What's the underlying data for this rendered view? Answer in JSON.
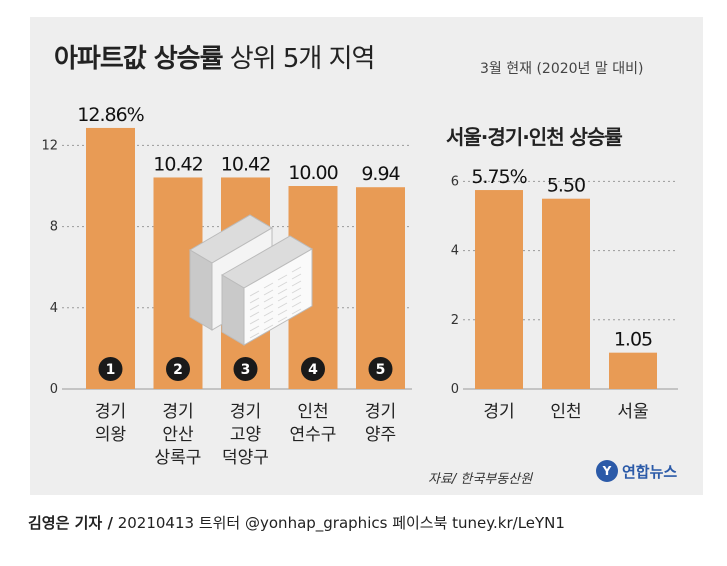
{
  "header": {
    "title_bold": "아파트값 상승률",
    "title_light": "상위 5개 지역",
    "subtitle": "3월 현재 (2020년 말 대비)"
  },
  "colors": {
    "bar": "#e89b55",
    "panel": "#eeeeee",
    "badge": "#1a1a1a",
    "logo": "#2b5aa8"
  },
  "chart_data": [
    {
      "type": "bar",
      "title": "",
      "categories": [
        [
          "경기",
          "의왕"
        ],
        [
          "경기",
          "안산",
          "상록구"
        ],
        [
          "경기",
          "고양",
          "덕양구"
        ],
        [
          "인천",
          "연수구"
        ],
        [
          "경기",
          "양주"
        ]
      ],
      "values": [
        12.86,
        10.42,
        10.42,
        10.0,
        9.94
      ],
      "value_labels": [
        "12.86%",
        "10.42",
        "10.42",
        "10.00",
        "9.94"
      ],
      "rank_badges": [
        "1",
        "2",
        "3",
        "4",
        "5"
      ],
      "yticks": [
        "0",
        "4",
        "8",
        "12"
      ],
      "ylim": [
        0,
        14
      ],
      "grid": true
    },
    {
      "type": "bar",
      "title": "서울·경기·인천 상승률",
      "categories": [
        [
          "경기"
        ],
        [
          "인천"
        ],
        [
          "서울"
        ]
      ],
      "values": [
        5.75,
        5.5,
        1.05
      ],
      "value_labels": [
        "5.75%",
        "5.50",
        "1.05"
      ],
      "yticks": [
        "0",
        "2",
        "4",
        "6"
      ],
      "ylim": [
        0,
        6.5
      ],
      "grid": true
    }
  ],
  "footer": {
    "source": "자료/ 한국부동산원",
    "logo_text": "연합뉴스",
    "credit_name": "김영은 기자 /",
    "credit_rest": "20210413  트위터 @yonhap_graphics  페이스북 tuney.kr/LeYN1"
  }
}
